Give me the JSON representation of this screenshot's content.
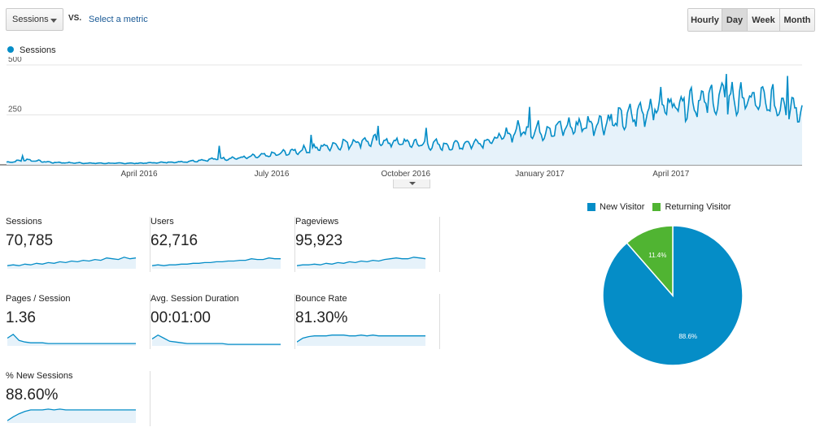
{
  "controls": {
    "metric_select_label": "Sessions",
    "vs_label": "VS.",
    "select_metric_link": "Select a metric",
    "timescale": [
      "Hourly",
      "Day",
      "Week",
      "Month"
    ],
    "timescale_active": "Day"
  },
  "colors": {
    "sessions_line": "#058dc7",
    "sessions_fill": "#e6f2fa",
    "new_visitor": "#058dc7",
    "returning_visitor": "#50b432"
  },
  "chart_data": [
    {
      "type": "area",
      "series": [
        {
          "name": "Sessions",
          "color": "#058dc7"
        }
      ],
      "ylim": [
        0,
        500
      ],
      "yticks": [
        250,
        500
      ],
      "xticks": [
        "April 2016",
        "July 2016",
        "October 2016",
        "January 2017",
        "April 2017"
      ],
      "x_start": "2016-01-01",
      "x_end": "2017-06-30",
      "xtick_dates": [
        "2016-04-01",
        "2016-07-01",
        "2016-10-01",
        "2017-01-01",
        "2017-04-01"
      ],
      "trend": [
        [
          "2016-01-01",
          12
        ],
        [
          "2016-01-15",
          25
        ],
        [
          "2016-02-01",
          12
        ],
        [
          "2016-03-01",
          8
        ],
        [
          "2016-04-01",
          8
        ],
        [
          "2016-05-01",
          15
        ],
        [
          "2016-05-25",
          30
        ],
        [
          "2016-06-10",
          35
        ],
        [
          "2016-07-01",
          50
        ],
        [
          "2016-08-01",
          85
        ],
        [
          "2016-09-01",
          120
        ],
        [
          "2016-10-01",
          110
        ],
        [
          "2016-11-01",
          95
        ],
        [
          "2016-12-01",
          125
        ],
        [
          "2016-12-20",
          180
        ],
        [
          "2017-01-01",
          170
        ],
        [
          "2017-02-01",
          200
        ],
        [
          "2017-03-01",
          230
        ],
        [
          "2017-03-25",
          300
        ],
        [
          "2017-04-15",
          320
        ],
        [
          "2017-05-15",
          330
        ],
        [
          "2017-06-30",
          290
        ]
      ],
      "peaks": [
        [
          "2016-01-12",
          45
        ],
        [
          "2016-05-26",
          95
        ],
        [
          "2016-07-28",
          150
        ],
        [
          "2016-09-12",
          195
        ],
        [
          "2016-10-15",
          185
        ],
        [
          "2016-12-25",
          290
        ],
        [
          "2017-03-25",
          390
        ],
        [
          "2017-04-22",
          370
        ],
        [
          "2017-05-09",
          455
        ],
        [
          "2017-06-20",
          445
        ]
      ]
    },
    {
      "type": "pie",
      "labels": [
        "New Visitor",
        "Returning Visitor"
      ],
      "values": [
        88.6,
        11.4
      ],
      "slice_labels": [
        "88.6%",
        "11.4%"
      ]
    }
  ],
  "metrics": [
    {
      "label": "Sessions",
      "value": "70,785",
      "spark": [
        3,
        4,
        3,
        5,
        4,
        6,
        5,
        7,
        6,
        8,
        7,
        9,
        8,
        10,
        9,
        11,
        10,
        13,
        12,
        11,
        14,
        12,
        13
      ]
    },
    {
      "label": "Users",
      "value": "62,716",
      "spark": [
        3,
        4,
        3,
        4,
        4,
        5,
        5,
        6,
        6,
        7,
        7,
        8,
        8,
        9,
        9,
        10,
        10,
        12,
        11,
        11,
        13,
        12,
        12
      ]
    },
    {
      "label": "Pageviews",
      "value": "95,923",
      "spark": [
        3,
        4,
        4,
        5,
        4,
        6,
        5,
        7,
        6,
        8,
        7,
        9,
        8,
        10,
        9,
        11,
        12,
        13,
        12,
        12,
        14,
        13,
        12
      ]
    },
    {
      "label": "Pages / Session",
      "value": "1.36",
      "spark": [
        9,
        14,
        6,
        4,
        3,
        3,
        3,
        2,
        2,
        2,
        2,
        2,
        2,
        2,
        2,
        2,
        2,
        2,
        2,
        2,
        2,
        2,
        2
      ]
    },
    {
      "label": "Avg. Session Duration",
      "value": "00:01:00",
      "spark": [
        8,
        13,
        9,
        5,
        4,
        3,
        2,
        2,
        2,
        2,
        2,
        2,
        2,
        1,
        1,
        1,
        1,
        1,
        1,
        1,
        1,
        1,
        1
      ]
    },
    {
      "label": "Bounce Rate",
      "value": "81.30%",
      "spark": [
        4,
        9,
        11,
        12,
        12,
        12,
        13,
        13,
        13,
        12,
        12,
        13,
        12,
        13,
        12,
        12,
        12,
        12,
        12,
        12,
        12,
        12,
        12
      ]
    },
    {
      "label": "% New Sessions",
      "value": "88.60%",
      "spark": [
        2,
        7,
        11,
        14,
        16,
        16,
        16,
        17,
        16,
        17,
        16,
        16,
        16,
        16,
        16,
        16,
        16,
        16,
        16,
        16,
        16,
        16,
        16
      ]
    }
  ]
}
